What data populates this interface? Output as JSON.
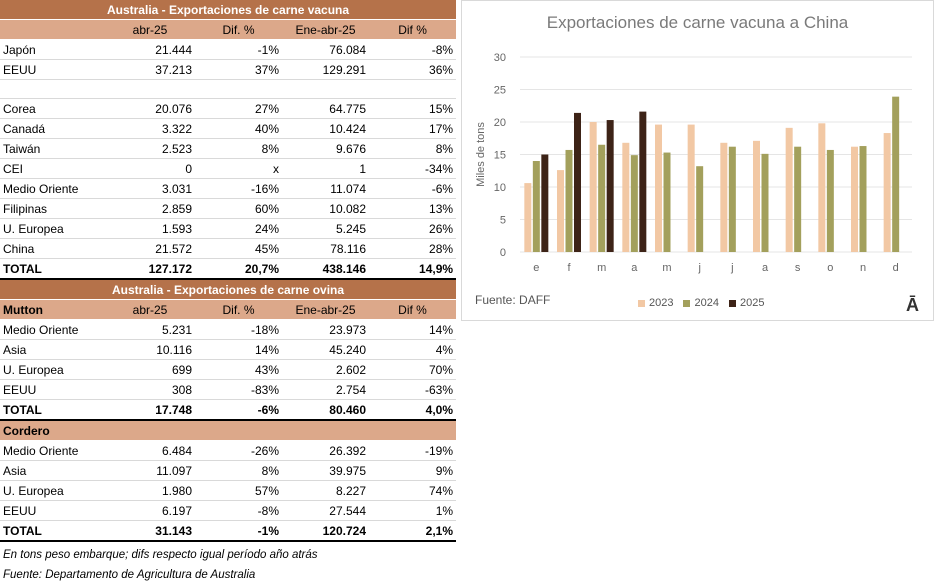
{
  "beef": {
    "title": "Australia - Exportaciones de carne vacuna",
    "headers": [
      "",
      "abr-25",
      "Dif. %",
      "Ene-abr-25",
      "Dif %"
    ],
    "rows": [
      [
        "Japón",
        "21.444",
        "-1%",
        "76.084",
        "-8%"
      ],
      [
        "EEUU",
        "37.213",
        "37%",
        "129.291",
        "36%"
      ],
      [
        "",
        "",
        "",
        "",
        ""
      ],
      [
        "Corea",
        "20.076",
        "27%",
        "64.775",
        "15%"
      ],
      [
        "Canadá",
        "3.322",
        "40%",
        "10.424",
        "17%"
      ],
      [
        "Taiwán",
        "2.523",
        "8%",
        "9.676",
        "8%"
      ],
      [
        "CEI",
        "0",
        "x",
        "1",
        "-34%"
      ],
      [
        "Medio Oriente",
        "3.031",
        "-16%",
        "11.074",
        "-6%"
      ],
      [
        "Filipinas",
        "2.859",
        "60%",
        "10.082",
        "13%"
      ],
      [
        "U. Europea",
        "1.593",
        "24%",
        "5.245",
        "26%"
      ],
      [
        "China",
        "21.572",
        "45%",
        "78.116",
        "28%"
      ]
    ],
    "total": [
      "TOTAL",
      "127.172",
      "20,7%",
      "438.146",
      "14,9%"
    ]
  },
  "sheep": {
    "title": "Australia - Exportaciones de carne ovina",
    "mutton_headers": [
      "Mutton",
      "abr-25",
      "Dif. %",
      "Ene-abr-25",
      "Dif %"
    ],
    "mutton_rows": [
      [
        "Medio Oriente",
        "5.231",
        "-18%",
        "23.973",
        "14%"
      ],
      [
        "Asia",
        "10.116",
        "14%",
        "45.240",
        "4%"
      ],
      [
        "U. Europea",
        "699",
        "43%",
        "2.602",
        "70%"
      ],
      [
        "EEUU",
        "308",
        "-83%",
        "2.754",
        "-63%"
      ]
    ],
    "mutton_total": [
      "TOTAL",
      "17.748",
      "-6%",
      "80.460",
      "4,0%"
    ],
    "lamb_header": "Cordero",
    "lamb_rows": [
      [
        "Medio Oriente",
        "6.484",
        "-26%",
        "26.392",
        "-19%"
      ],
      [
        "Asia",
        "11.097",
        "8%",
        "39.975",
        "9%"
      ],
      [
        "U. Europea",
        "1.980",
        "57%",
        "8.227",
        "74%"
      ],
      [
        "EEUU",
        "6.197",
        "-8%",
        "27.544",
        "1%"
      ]
    ],
    "lamb_total": [
      "TOTAL",
      "31.143",
      "-1%",
      "120.724",
      "2,1%"
    ]
  },
  "notes": {
    "line1": "En tons peso embarque; difs respecto igual período año atrás",
    "line2": "Fuente: Departamento de Agricultura de Australia"
  },
  "chart_data": {
    "type": "bar",
    "title": "Exportaciones de carne vacuna a China",
    "ylabel": "Miles de tons",
    "xlabel": "",
    "ylim": [
      0,
      30
    ],
    "yticks": [
      0,
      5,
      10,
      15,
      20,
      25,
      30
    ],
    "categories": [
      "e",
      "f",
      "m",
      "a",
      "m",
      "j",
      "j",
      "a",
      "s",
      "o",
      "n",
      "d"
    ],
    "series": [
      {
        "name": "2023",
        "color": "#f2c8a4",
        "values": [
          10.6,
          12.6,
          20.0,
          16.8,
          19.6,
          19.6,
          16.8,
          17.1,
          19.1,
          19.8,
          16.2,
          18.3
        ]
      },
      {
        "name": "2024",
        "color": "#a3a05c",
        "values": [
          14.0,
          15.7,
          16.5,
          14.9,
          15.3,
          13.2,
          16.2,
          15.1,
          16.2,
          15.7,
          16.3,
          23.9
        ]
      },
      {
        "name": "2025",
        "color": "#3d2317",
        "values": [
          15.0,
          21.4,
          20.3,
          21.6,
          null,
          null,
          null,
          null,
          null,
          null,
          null,
          null
        ]
      }
    ],
    "source": "Fuente: DAFF",
    "logo": "Ā"
  }
}
